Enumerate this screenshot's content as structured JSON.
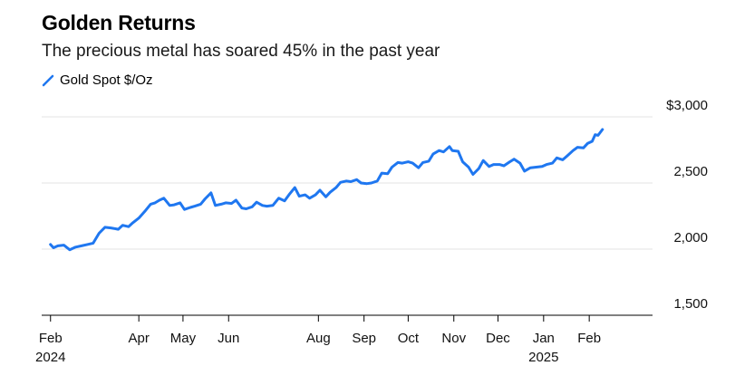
{
  "header": {
    "title": "Golden Returns",
    "subtitle": "The precious metal has soared 45% in the past year"
  },
  "legend": {
    "label": "Gold Spot $/Oz",
    "color": "#1f77f0",
    "icon": "line-swatch-icon"
  },
  "chart_data": {
    "type": "line",
    "title": "Golden Returns",
    "subtitle": "The precious metal has soared 45% in the past year",
    "xlabel": "",
    "ylabel": "",
    "ylim": [
      1500,
      3000
    ],
    "yticks": [
      {
        "value": 3000,
        "label": "$3,000"
      },
      {
        "value": 2500,
        "label": "2,500"
      },
      {
        "value": 2000,
        "label": "2,000"
      },
      {
        "value": 1500,
        "label": "1,500"
      }
    ],
    "xlim": [
      "2024-01-26",
      "2025-03-16"
    ],
    "xticks": [
      {
        "date": "2024-02-01",
        "label": "Feb",
        "sublabel": "2024"
      },
      {
        "date": "2024-04-01",
        "label": "Apr"
      },
      {
        "date": "2024-05-01",
        "label": "May"
      },
      {
        "date": "2024-06-01",
        "label": "Jun"
      },
      {
        "date": "2024-08-01",
        "label": "Aug"
      },
      {
        "date": "2024-09-01",
        "label": "Sep"
      },
      {
        "date": "2024-10-01",
        "label": "Oct"
      },
      {
        "date": "2024-11-01",
        "label": "Nov"
      },
      {
        "date": "2024-12-01",
        "label": "Dec"
      },
      {
        "date": "2025-01-01",
        "label": "Jan",
        "sublabel": "2025"
      },
      {
        "date": "2025-02-01",
        "label": "Feb"
      }
    ],
    "grid": "horizontal",
    "legend_position": "top-left",
    "series": [
      {
        "name": "Gold Spot $/Oz",
        "color": "#1f77f0",
        "points": [
          [
            "2024-02-01",
            2035
          ],
          [
            "2024-02-03",
            2010
          ],
          [
            "2024-02-06",
            2025
          ],
          [
            "2024-02-10",
            2030
          ],
          [
            "2024-02-14",
            1995
          ],
          [
            "2024-02-18",
            2015
          ],
          [
            "2024-02-22",
            2025
          ],
          [
            "2024-02-26",
            2035
          ],
          [
            "2024-03-01",
            2045
          ],
          [
            "2024-03-05",
            2120
          ],
          [
            "2024-03-09",
            2165
          ],
          [
            "2024-03-13",
            2160
          ],
          [
            "2024-03-18",
            2150
          ],
          [
            "2024-03-21",
            2180
          ],
          [
            "2024-03-25",
            2170
          ],
          [
            "2024-03-28",
            2200
          ],
          [
            "2024-04-01",
            2235
          ],
          [
            "2024-04-05",
            2285
          ],
          [
            "2024-04-09",
            2340
          ],
          [
            "2024-04-12",
            2350
          ],
          [
            "2024-04-15",
            2370
          ],
          [
            "2024-04-18",
            2385
          ],
          [
            "2024-04-22",
            2330
          ],
          [
            "2024-04-25",
            2335
          ],
          [
            "2024-04-29",
            2350
          ],
          [
            "2024-05-02",
            2300
          ],
          [
            "2024-05-06",
            2315
          ],
          [
            "2024-05-09",
            2325
          ],
          [
            "2024-05-13",
            2340
          ],
          [
            "2024-05-16",
            2380
          ],
          [
            "2024-05-20",
            2425
          ],
          [
            "2024-05-23",
            2330
          ],
          [
            "2024-05-27",
            2340
          ],
          [
            "2024-05-30",
            2350
          ],
          [
            "2024-06-03",
            2345
          ],
          [
            "2024-06-06",
            2370
          ],
          [
            "2024-06-10",
            2310
          ],
          [
            "2024-06-13",
            2305
          ],
          [
            "2024-06-17",
            2320
          ],
          [
            "2024-06-20",
            2355
          ],
          [
            "2024-06-24",
            2330
          ],
          [
            "2024-06-27",
            2325
          ],
          [
            "2024-07-01",
            2330
          ],
          [
            "2024-07-05",
            2385
          ],
          [
            "2024-07-09",
            2365
          ],
          [
            "2024-07-12",
            2410
          ],
          [
            "2024-07-16",
            2465
          ],
          [
            "2024-07-19",
            2400
          ],
          [
            "2024-07-23",
            2410
          ],
          [
            "2024-07-26",
            2385
          ],
          [
            "2024-07-30",
            2410
          ],
          [
            "2024-08-02",
            2445
          ],
          [
            "2024-08-06",
            2395
          ],
          [
            "2024-08-09",
            2430
          ],
          [
            "2024-08-13",
            2465
          ],
          [
            "2024-08-16",
            2505
          ],
          [
            "2024-08-20",
            2515
          ],
          [
            "2024-08-23",
            2510
          ],
          [
            "2024-08-27",
            2525
          ],
          [
            "2024-08-30",
            2500
          ],
          [
            "2024-09-03",
            2495
          ],
          [
            "2024-09-06",
            2500
          ],
          [
            "2024-09-10",
            2515
          ],
          [
            "2024-09-13",
            2575
          ],
          [
            "2024-09-17",
            2570
          ],
          [
            "2024-09-20",
            2620
          ],
          [
            "2024-09-24",
            2655
          ],
          [
            "2024-09-27",
            2650
          ],
          [
            "2024-10-01",
            2660
          ],
          [
            "2024-10-04",
            2650
          ],
          [
            "2024-10-08",
            2615
          ],
          [
            "2024-10-11",
            2655
          ],
          [
            "2024-10-15",
            2665
          ],
          [
            "2024-10-18",
            2720
          ],
          [
            "2024-10-22",
            2745
          ],
          [
            "2024-10-25",
            2735
          ],
          [
            "2024-10-29",
            2775
          ],
          [
            "2024-10-31",
            2745
          ],
          [
            "2024-11-04",
            2740
          ],
          [
            "2024-11-07",
            2660
          ],
          [
            "2024-11-11",
            2620
          ],
          [
            "2024-11-14",
            2565
          ],
          [
            "2024-11-18",
            2610
          ],
          [
            "2024-11-21",
            2670
          ],
          [
            "2024-11-25",
            2625
          ],
          [
            "2024-11-28",
            2640
          ],
          [
            "2024-12-02",
            2640
          ],
          [
            "2024-12-05",
            2630
          ],
          [
            "2024-12-09",
            2660
          ],
          [
            "2024-12-12",
            2680
          ],
          [
            "2024-12-16",
            2650
          ],
          [
            "2024-12-19",
            2590
          ],
          [
            "2024-12-23",
            2615
          ],
          [
            "2024-12-27",
            2620
          ],
          [
            "2024-12-31",
            2625
          ],
          [
            "2025-01-03",
            2640
          ],
          [
            "2025-01-07",
            2650
          ],
          [
            "2025-01-10",
            2690
          ],
          [
            "2025-01-14",
            2675
          ],
          [
            "2025-01-17",
            2705
          ],
          [
            "2025-01-21",
            2745
          ],
          [
            "2025-01-24",
            2770
          ],
          [
            "2025-01-28",
            2765
          ],
          [
            "2025-01-31",
            2800
          ],
          [
            "2025-02-03",
            2815
          ],
          [
            "2025-02-05",
            2865
          ],
          [
            "2025-02-07",
            2860
          ],
          [
            "2025-02-10",
            2905
          ]
        ]
      }
    ]
  }
}
